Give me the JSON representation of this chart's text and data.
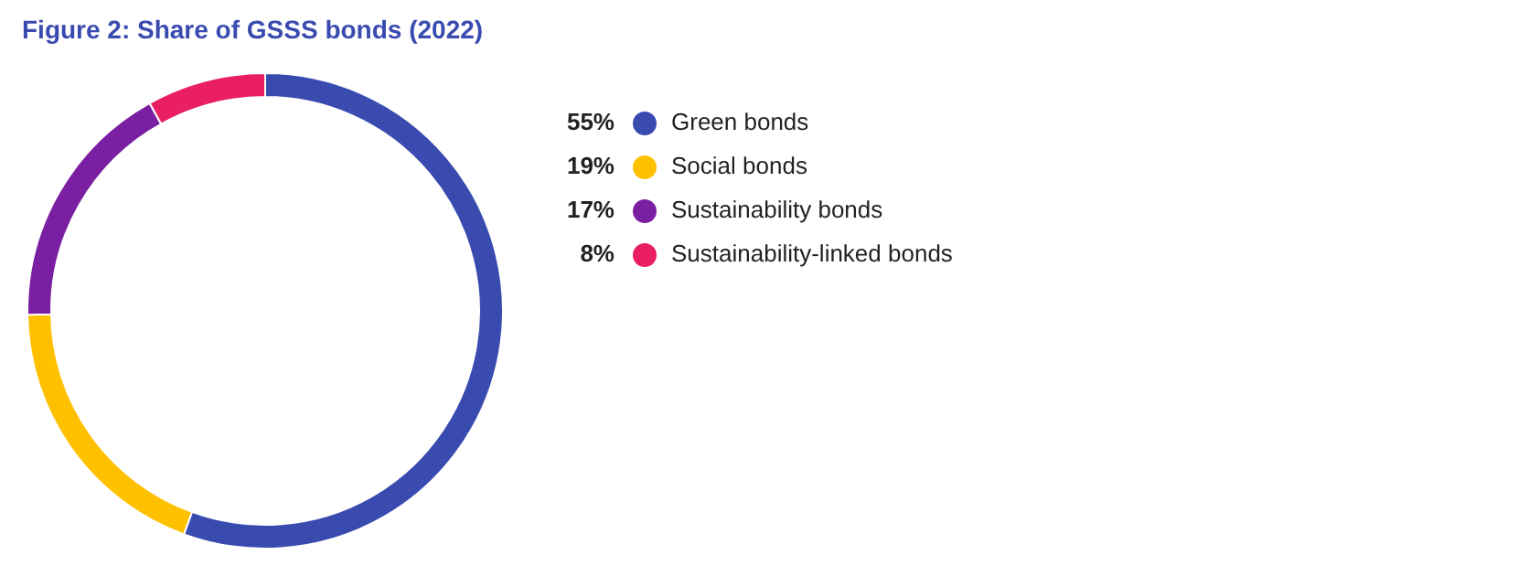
{
  "chart_data": {
    "type": "donut",
    "title": "Figure 2: Share of GSSS bonds (2022)",
    "categories": [
      "Green bonds",
      "Social bonds",
      "Sustainability bonds",
      "Sustainability-linked bonds"
    ],
    "values": [
      55,
      19,
      17,
      8
    ],
    "value_labels": [
      "55%",
      "19%",
      "17%",
      "8%"
    ],
    "colors": [
      "#3a4bb0",
      "#ffc000",
      "#7b1fa2",
      "#e91e63"
    ],
    "legend": "right"
  }
}
